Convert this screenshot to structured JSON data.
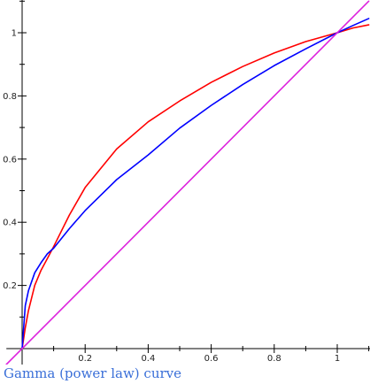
{
  "caption": "Gamma (power law) curve",
  "chart_data": {
    "type": "line",
    "title": "",
    "xlabel": "",
    "ylabel": "",
    "xlim": [
      -0.05,
      1.1
    ],
    "ylim": [
      -0.05,
      1.1
    ],
    "x_ticks": [
      0,
      0.2,
      0.4,
      0.6,
      0.8,
      1
    ],
    "x_tick_labels": [
      "",
      "0.2",
      "0.4",
      "0.6",
      "0.8",
      "1"
    ],
    "x_minor_step": 0.1,
    "y_ticks": [
      0.2,
      0.4,
      0.6,
      0.8,
      1
    ],
    "y_tick_labels": [
      "0.2",
      "0.4",
      "0.6",
      "0.8",
      "1"
    ],
    "y_minor_step": 0.1,
    "grid": false,
    "legend": "none",
    "series": [
      {
        "color": "#ff0000",
        "x": [
          0,
          0.01,
          0.02,
          0.04,
          0.06,
          0.08,
          0.1,
          0.15,
          0.2,
          0.3,
          0.4,
          0.5,
          0.6,
          0.7,
          0.8,
          0.9,
          1.0,
          1.05,
          1.1
        ],
        "y": [
          0,
          0.066,
          0.12,
          0.2,
          0.248,
          0.285,
          0.323,
          0.423,
          0.51,
          0.632,
          0.718,
          0.784,
          0.843,
          0.893,
          0.936,
          0.972,
          1.0,
          1.015,
          1.025
        ]
      },
      {
        "color": "#0000ff",
        "x": [
          0,
          0.01,
          0.02,
          0.04,
          0.06,
          0.08,
          0.1,
          0.15,
          0.2,
          0.3,
          0.4,
          0.5,
          0.6,
          0.7,
          0.8,
          0.9,
          1.0,
          1.05,
          1.1
        ],
        "y": [
          0,
          0.136,
          0.183,
          0.24,
          0.272,
          0.3,
          0.318,
          0.38,
          0.437,
          0.535,
          0.613,
          0.698,
          0.77,
          0.836,
          0.896,
          0.949,
          1.0,
          1.023,
          1.045
        ]
      },
      {
        "color": "#dd22dd",
        "x": [
          -0.05,
          1.1
        ],
        "y": [
          -0.05,
          1.1
        ]
      }
    ]
  }
}
